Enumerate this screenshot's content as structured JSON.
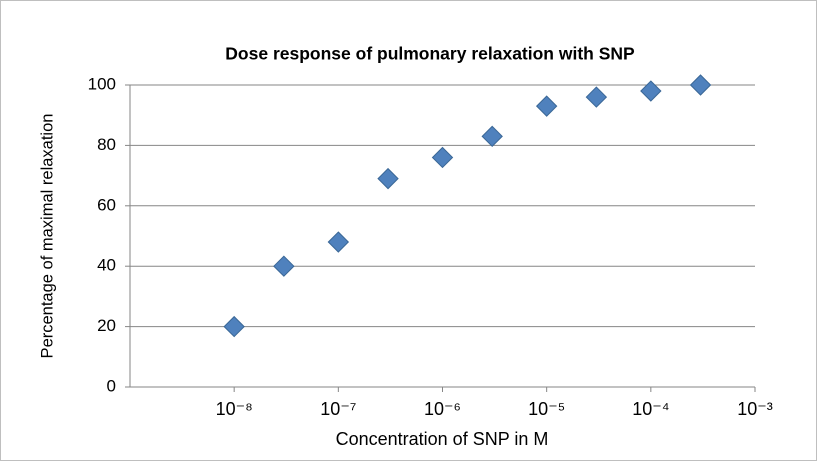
{
  "chart_data": {
    "type": "scatter",
    "title": "Dose response of pulmonary relaxation with SNP",
    "x_label": "Concentration of SNP in M",
    "y_label": "Percentage of maximal relaxation",
    "x": [
      1e-08,
      3e-08,
      1e-07,
      3e-07,
      1e-06,
      3e-06,
      1e-05,
      3e-05,
      0.0001,
      0.0003
    ],
    "values": [
      20,
      40,
      48,
      69,
      76,
      83,
      93,
      96,
      98,
      100
    ],
    "color": "#4f81bd",
    "log_x": true,
    "xlim": [
      1e-09,
      0.001
    ],
    "xticks": [
      {
        "value": 1e-08,
        "label": "10⁻⁸"
      },
      {
        "value": 1e-07,
        "label": "10⁻⁷"
      },
      {
        "value": 1e-06,
        "label": "10⁻⁶"
      },
      {
        "value": 1e-05,
        "label": "10⁻⁵"
      },
      {
        "value": 0.0001,
        "label": "10⁻⁴"
      },
      {
        "value": 0.001,
        "label": "10⁻³"
      }
    ],
    "ylim": [
      0,
      100
    ],
    "yticks": [
      0,
      20,
      40,
      60,
      80,
      100
    ],
    "grid": true
  }
}
